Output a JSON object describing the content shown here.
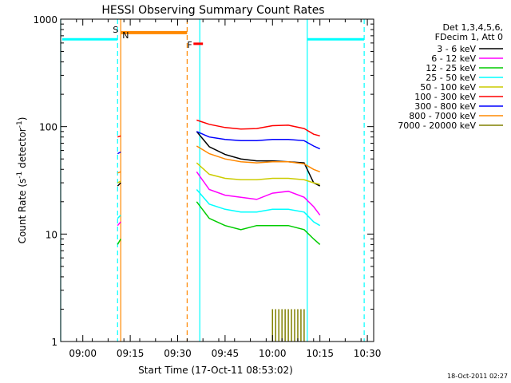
{
  "chart_data": {
    "type": "line",
    "title": "HESSI Observing Summary Count Rates",
    "xlabel": "Start Time (17-Oct-11 08:53:02)",
    "ylabel_prefix": "Count Rate (s",
    "ylabel_sup1": "-1",
    "ylabel_mid": " detector",
    "ylabel_sup2": "-1",
    "ylabel_suffix": ")",
    "ylabel": "Count Rate (s-1 detector-1)",
    "yscale": "log",
    "ylim": [
      1,
      1000
    ],
    "xlim_minutes": [
      "08:53",
      "10:32"
    ],
    "xticks": [
      "09:00",
      "09:15",
      "09:30",
      "09:45",
      "10:00",
      "10:15",
      "10:30"
    ],
    "yticks": [
      "1",
      "10",
      "100",
      "1000"
    ],
    "legend_header": [
      "Det 1,3,4,5,6,",
      "FDecim 1, Att 0"
    ],
    "legend_placement": "right",
    "timestamp": "18-Oct-2011 02:27",
    "series": [
      {
        "name": "3 - 6 keV",
        "color": "#000000",
        "t": [
          "09:11",
          "09:12",
          "09:36",
          "09:40",
          "09:45",
          "09:50",
          "09:55",
          "10:00",
          "10:05",
          "10:10",
          "10:13",
          "10:15"
        ],
        "values": [
          28,
          30,
          90,
          65,
          55,
          50,
          48,
          48,
          47,
          46,
          30,
          28
        ]
      },
      {
        "name": "6 - 12 keV",
        "color": "#ff00ff",
        "t": [
          "09:11",
          "09:12",
          "09:36",
          "09:40",
          "09:45",
          "09:50",
          "09:55",
          "10:00",
          "10:05",
          "10:10",
          "10:13",
          "10:15"
        ],
        "values": [
          12,
          13,
          38,
          26,
          23,
          22,
          21,
          24,
          25,
          22,
          18,
          15
        ]
      },
      {
        "name": "12 - 25 keV",
        "color": "#00cc00",
        "t": [
          "09:11",
          "09:12",
          "09:36",
          "09:40",
          "09:45",
          "09:50",
          "09:55",
          "10:00",
          "10:05",
          "10:10",
          "10:13",
          "10:15"
        ],
        "values": [
          8,
          9,
          20,
          14,
          12,
          11,
          12,
          12,
          12,
          11,
          9,
          8
        ]
      },
      {
        "name": "25 - 50 keV",
        "color": "#00ffff",
        "t": [
          "09:11",
          "09:12",
          "09:36",
          "09:40",
          "09:45",
          "09:50",
          "09:55",
          "10:00",
          "10:05",
          "10:10",
          "10:13",
          "10:15"
        ],
        "values": [
          14,
          15,
          26,
          19,
          17,
          16,
          16,
          17,
          17,
          16,
          13,
          12
        ]
      },
      {
        "name": "50 - 100 keV",
        "color": "#cccc00",
        "t": [
          "09:11",
          "09:12",
          "09:36",
          "09:40",
          "09:45",
          "09:50",
          "09:55",
          "10:00",
          "10:05",
          "10:10",
          "10:13",
          "10:15"
        ],
        "values": [
          30,
          31,
          46,
          36,
          33,
          32,
          32,
          33,
          33,
          32,
          30,
          29
        ]
      },
      {
        "name": "100 - 300 keV",
        "color": "#ff0000",
        "t": [
          "09:11",
          "09:12",
          "09:36",
          "09:40",
          "09:45",
          "09:50",
          "09:55",
          "10:00",
          "10:05",
          "10:10",
          "10:13",
          "10:15"
        ],
        "values": [
          80,
          82,
          115,
          105,
          98,
          95,
          96,
          102,
          103,
          96,
          85,
          82
        ]
      },
      {
        "name": "300 - 800 keV",
        "color": "#0000ff",
        "t": [
          "09:11",
          "09:12",
          "09:36",
          "09:40",
          "09:45",
          "09:50",
          "09:55",
          "10:00",
          "10:05",
          "10:10",
          "10:13",
          "10:15"
        ],
        "values": [
          56,
          58,
          90,
          80,
          76,
          74,
          74,
          76,
          76,
          74,
          66,
          62
        ]
      },
      {
        "name": "800 - 7000 keV",
        "color": "#ff8800",
        "t": [
          "09:11",
          "09:12",
          "09:36",
          "09:40",
          "09:45",
          "09:50",
          "09:55",
          "10:00",
          "10:05",
          "10:10",
          "10:13",
          "10:15"
        ],
        "values": [
          37,
          38,
          66,
          56,
          50,
          47,
          46,
          47,
          47,
          45,
          40,
          38
        ]
      },
      {
        "name": "7000 - 20000 keV",
        "color": "#808000",
        "t": [
          "10:00",
          "10:01",
          "10:02",
          "10:03",
          "10:04",
          "10:05",
          "10:06",
          "10:07",
          "10:08",
          "10:09",
          "10:10"
        ],
        "values": [
          2,
          2,
          2,
          2,
          2,
          2,
          2,
          2,
          2,
          2,
          2
        ]
      }
    ],
    "cyan_level": {
      "color": "#00ffff",
      "value": 650,
      "segments": [
        [
          "08:53",
          "09:11"
        ],
        [
          "10:11",
          "10:29"
        ]
      ]
    },
    "cyan_solid_verticals": [
      "08:53",
      "09:37",
      "10:11"
    ],
    "cyan_dashed_verticals": [
      "09:11",
      "10:29"
    ],
    "orange_verticals": {
      "color": "#ff8800",
      "solid": [
        "09:12"
      ],
      "dashed": [
        "09:33"
      ]
    },
    "orange_bar": {
      "start": "09:12",
      "end": "09:33",
      "value": 750
    },
    "red_bar": {
      "start": "09:35",
      "end": "09:38",
      "value": 590
    },
    "flags": [
      {
        "label": "S",
        "t": "09:11",
        "color": "#ff8800"
      },
      {
        "label": "N",
        "t": "09:12",
        "color": "#00ffff"
      },
      {
        "label": "F",
        "t": "09:33",
        "color": "#ff0000"
      }
    ]
  }
}
